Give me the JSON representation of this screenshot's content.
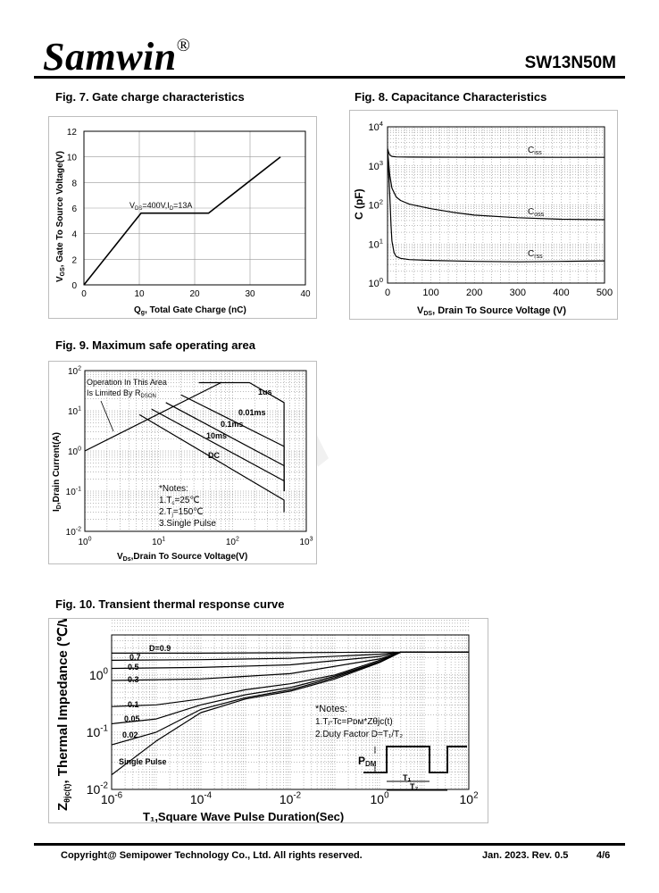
{
  "header": {
    "brand": "Samwin",
    "registered": "®",
    "part": "SW13N50M"
  },
  "fig7": {
    "title": "Fig. 7. Gate charge characteristics",
    "ylabel": "V",
    "ylabel_sub": "GS",
    "ylabel_rest": ", Gate To Source Voltage(V)",
    "xlabel": "Q",
    "xlabel_sub": "g",
    "xlabel_rest": ", Total Gate Charge (nC)",
    "annotation_v": "V",
    "annotation_ds": "DS",
    "annotation_mid": "=400V,I",
    "annotation_d": "D",
    "annotation_end": "=13A"
  },
  "fig8": {
    "title": "Fig. 8. Capacitance Characteristics",
    "ylabel": "C (pF)",
    "xlabel_v": "V",
    "xlabel_ds": "DS",
    "xlabel_rest": ", Drain To Source Voltage (V)",
    "ciss": "C",
    "ciss_sub": "iss",
    "coss": "C",
    "coss_sub": "oss",
    "crss": "C",
    "crss_sub": "rss"
  },
  "fig9": {
    "title": "Fig. 9. Maximum safe operating area",
    "ylabel": "I",
    "ylabel_sub": "D",
    "ylabel_rest": ",Drain Current(A)",
    "xlabel": "V",
    "xlabel_sub": "Ds",
    "xlabel_rest": ",Drain To Source Voltage(V)",
    "op_line1": "Operation In This Area",
    "op_line2": "Is Limited By R",
    "op_sub": "DSON",
    "labels": [
      "1us",
      "0.01ms",
      "0.1ms",
      "10ms",
      "DC"
    ],
    "notes_title": "*Notes:",
    "note1a": "1.T",
    "note1b": "=25℃",
    "note2a": "2.T",
    "note2b": "=150℃",
    "note3": "3.Single Pulse"
  },
  "fig10": {
    "title": "Fig. 10. Transient thermal response curve",
    "ylabel": "Thermal  Impedance (℃/W)",
    "xlabel": "T₁,Square Wave Pulse Duration(Sec)",
    "d_labels": [
      "D=0.9",
      "0.7",
      "0.5",
      "0.3",
      "0.1",
      "0.05",
      "0.02",
      "Single Pulse"
    ],
    "notes_title": "*Notes:",
    "note1": "1.Tⱼ-Tc=Pᴅᴍ*Zθjc(t)",
    "note2": "2.Duty Factor D=T₁/T₂",
    "pdm": "P",
    "pdm_sub": "DM",
    "t1": "T₁",
    "t2": "T₂"
  },
  "footer": {
    "copyright": "Copyright@ Semipower Technology Co., Ltd. All rights reserved.",
    "revision": "Jan. 2023. Rev. 0.5",
    "page": "4/6"
  },
  "chart_data": [
    {
      "type": "line",
      "title": "Fig. 7. Gate charge characteristics",
      "xlabel": "Qg, Total Gate Charge (nC)",
      "ylabel": "VGS, Gate To Source Voltage(V)",
      "xlim": [
        0,
        40
      ],
      "ylim": [
        0,
        12
      ],
      "xticks": [
        0,
        10,
        20,
        30,
        40
      ],
      "yticks": [
        0,
        2,
        4,
        6,
        8,
        10,
        12
      ],
      "series": [
        {
          "x": [
            0,
            10.3,
            22.5,
            35.5
          ],
          "y": [
            0,
            5.6,
            5.6,
            10
          ]
        }
      ],
      "annotation": "VDS=400V,ID=13A",
      "grid": true
    },
    {
      "type": "line",
      "title": "Fig. 8. Capacitance Characteristics",
      "xlabel": "VDS, Drain To Source Voltage (V)",
      "ylabel": "C (pF)",
      "xlim": [
        0,
        500
      ],
      "ylim": [
        1,
        10000
      ],
      "yscale": "log",
      "xticks": [
        0,
        100,
        200,
        300,
        400,
        500
      ],
      "yticks": [
        "10^0",
        "10^1",
        "10^2",
        "10^3",
        "10^4"
      ],
      "series": [
        {
          "name": "Ciss",
          "x": [
            0,
            2,
            5,
            10,
            20,
            50,
            100,
            200,
            300,
            400,
            500
          ],
          "y": [
            2800,
            2300,
            1900,
            1750,
            1700,
            1680,
            1670,
            1660,
            1660,
            1650,
            1650
          ]
        },
        {
          "name": "Coss",
          "x": [
            0,
            2,
            5,
            10,
            20,
            30,
            50,
            100,
            150,
            200,
            300,
            400,
            500
          ],
          "y": [
            2500,
            1400,
            600,
            270,
            160,
            130,
            105,
            80,
            65,
            55,
            47,
            43,
            42
          ]
        },
        {
          "name": "Crss",
          "x": [
            0,
            2,
            5,
            8,
            10,
            15,
            20,
            30,
            50,
            100,
            200,
            300,
            400,
            500
          ],
          "y": [
            2300,
            900,
            200,
            30,
            12,
            6,
            4.8,
            4.3,
            4.0,
            3.8,
            3.6,
            3.5,
            3.6,
            3.7
          ]
        }
      ],
      "grid": true
    },
    {
      "type": "line",
      "title": "Fig. 9. Maximum safe operating area",
      "xlabel": "VDs,Drain To Source Voltage(V)",
      "ylabel": "ID,Drain Current(A)",
      "xlim": [
        1,
        1000
      ],
      "ylim": [
        0.01,
        100
      ],
      "xscale": "log",
      "yscale": "log",
      "xticks": [
        "10^0",
        "10^1",
        "10^2",
        "10^3"
      ],
      "yticks": [
        "10^-2",
        "10^-1",
        "10^0",
        "10^1",
        "10^2"
      ],
      "series": [
        {
          "name": "RDSON limit",
          "x": [
            1,
            70
          ],
          "y": [
            1,
            50
          ]
        },
        {
          "name": "1us",
          "x": [
            35,
            55,
            170,
            500,
            500
          ],
          "y": [
            50,
            50,
            50,
            16,
            0.1
          ]
        },
        {
          "name": "0.01ms",
          "x": [
            20,
            500,
            500
          ],
          "y": [
            25,
            1.3,
            0.1
          ]
        },
        {
          "name": "0.1ms",
          "x": [
            12.5,
            500,
            500
          ],
          "y": [
            16,
            0.43,
            0.1
          ]
        },
        {
          "name": "10ms",
          "x": [
            8,
            500,
            500
          ],
          "y": [
            11,
            0.18,
            0.1
          ]
        },
        {
          "name": "DC",
          "x": [
            5.5,
            500,
            500
          ],
          "y": [
            8,
            0.06,
            0.03
          ]
        }
      ],
      "grid": true
    },
    {
      "type": "line",
      "title": "Fig. 10. Transient thermal response curve",
      "xlabel": "T1,Square Wave Pulse Duration(Sec)",
      "ylabel": "Zθjc(t), Thermal Impedance (℃/W)",
      "xlim": [
        1e-06,
        100
      ],
      "ylim": [
        0.01,
        5
      ],
      "xscale": "log",
      "yscale": "log",
      "xticks": [
        "10^-6",
        "10^-4",
        "10^-2",
        "10^0",
        "10^2"
      ],
      "yticks": [
        "10^-2",
        "10^-1",
        "10^0"
      ],
      "series": [
        {
          "name": "D=0.9",
          "x": [
            1e-06,
            0.0001,
            0.01,
            1,
            3,
            100
          ],
          "y": [
            2.4,
            2.4,
            2.45,
            2.5,
            2.5,
            2.5
          ]
        },
        {
          "name": "0.7",
          "x": [
            1e-06,
            0.0001,
            0.01,
            1,
            3,
            100
          ],
          "y": [
            1.8,
            1.85,
            1.95,
            2.3,
            2.5,
            2.5
          ]
        },
        {
          "name": "0.5",
          "x": [
            1e-06,
            0.0001,
            0.01,
            1,
            3,
            100
          ],
          "y": [
            1.3,
            1.35,
            1.5,
            2.1,
            2.5,
            2.5
          ]
        },
        {
          "name": "0.3",
          "x": [
            1e-06,
            0.0001,
            0.01,
            1,
            3,
            100
          ],
          "y": [
            0.8,
            0.85,
            1.05,
            1.9,
            2.5,
            2.5
          ]
        },
        {
          "name": "0.1",
          "x": [
            1e-06,
            1e-05,
            0.0001,
            0.001,
            0.01,
            0.1,
            1,
            3,
            100
          ],
          "y": [
            0.28,
            0.3,
            0.38,
            0.55,
            0.7,
            1.0,
            1.8,
            2.5,
            2.5
          ]
        },
        {
          "name": "0.05",
          "x": [
            1e-06,
            1e-05,
            0.0001,
            0.001,
            0.01,
            0.1,
            1,
            3,
            100
          ],
          "y": [
            0.14,
            0.17,
            0.3,
            0.45,
            0.6,
            0.95,
            1.7,
            2.5,
            2.5
          ]
        },
        {
          "name": "0.02",
          "x": [
            1e-06,
            1e-05,
            0.0001,
            0.001,
            0.01,
            0.1,
            1,
            3,
            100
          ],
          "y": [
            0.06,
            0.1,
            0.25,
            0.4,
            0.55,
            0.9,
            1.7,
            2.5,
            2.5
          ]
        },
        {
          "name": "Single Pulse",
          "x": [
            1e-06,
            1e-05,
            0.0001,
            0.001,
            0.01,
            0.1,
            1,
            3,
            100
          ],
          "y": [
            0.018,
            0.07,
            0.22,
            0.38,
            0.52,
            0.85,
            1.65,
            2.5,
            2.5
          ]
        }
      ],
      "grid": true
    }
  ]
}
